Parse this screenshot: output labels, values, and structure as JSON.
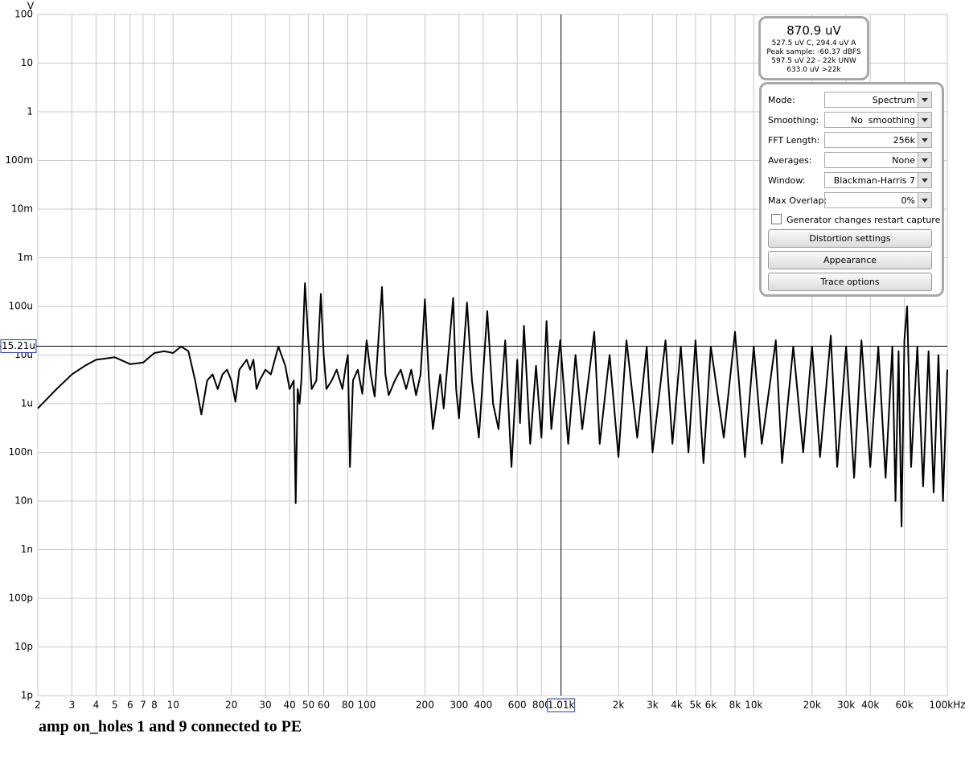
{
  "chart_data": {
    "type": "line",
    "y_unit_label": "V",
    "color": "#000000",
    "grid": true,
    "xscale": "log",
    "yscale": "log",
    "xlim": [
      2,
      100000
    ],
    "ylim": [
      1e-12,
      100
    ],
    "xticks": [
      2,
      3,
      4,
      5,
      6,
      7,
      8,
      10,
      20,
      30,
      40,
      50,
      60,
      80,
      100,
      200,
      300,
      400,
      600,
      800,
      {
        "value": 2000,
        "label": "2k"
      },
      {
        "value": 3000,
        "label": "3k"
      },
      {
        "value": 4000,
        "label": "4k"
      },
      {
        "value": 5000,
        "label": "5k"
      },
      {
        "value": 6000,
        "label": "6k"
      },
      {
        "value": 8000,
        "label": "8k"
      },
      {
        "value": 10000,
        "label": "10k"
      },
      {
        "value": 20000,
        "label": "20k"
      },
      {
        "value": 30000,
        "label": "30k"
      },
      {
        "value": 40000,
        "label": "40k"
      },
      {
        "value": 60000,
        "label": "60k"
      },
      {
        "value": 100000,
        "label": "100kHz"
      }
    ],
    "yticks": [
      100,
      10,
      1,
      {
        "value": 0.1,
        "label": "100m"
      },
      {
        "value": 0.01,
        "label": "10m"
      },
      {
        "value": 0.001,
        "label": "1m"
      },
      {
        "value": 0.0001,
        "label": "100u"
      },
      {
        "value": 1e-05,
        "label": "10u"
      },
      {
        "value": 1e-06,
        "label": "1u"
      },
      {
        "value": 1e-07,
        "label": "100n"
      },
      {
        "value": 1e-08,
        "label": "10n"
      },
      {
        "value": 1e-09,
        "label": "1n"
      },
      {
        "value": 1e-10,
        "label": "100p"
      },
      {
        "value": 1e-11,
        "label": "10p"
      },
      {
        "value": 1e-12,
        "label": "1p"
      }
    ],
    "cursor": {
      "x": {
        "value": 1010,
        "label": "1.01k"
      },
      "y": {
        "value": 1.521e-05,
        "label": "15.21u"
      }
    },
    "x": [
      2,
      2.5,
      3,
      3.5,
      4,
      5,
      6,
      7,
      8,
      9,
      10,
      11,
      12,
      13,
      14,
      15,
      16,
      17,
      18,
      19,
      20,
      21,
      22,
      24,
      25,
      26,
      27,
      28,
      30,
      32,
      35,
      38,
      40,
      42,
      43,
      44,
      45,
      46,
      48,
      50,
      52,
      55,
      58,
      60,
      62,
      66,
      70,
      75,
      78,
      80,
      82,
      85,
      90,
      95,
      100,
      105,
      110,
      120,
      125,
      130,
      140,
      150,
      160,
      170,
      180,
      190,
      200,
      210,
      220,
      240,
      250,
      280,
      290,
      300,
      330,
      350,
      380,
      420,
      450,
      480,
      520,
      560,
      600,
      620,
      650,
      700,
      750,
      800,
      850,
      900,
      1000,
      1100,
      1200,
      1300,
      1500,
      1600,
      1800,
      2000,
      2200,
      2500,
      2800,
      3000,
      3500,
      3800,
      4200,
      4600,
      5000,
      5500,
      6000,
      7000,
      8000,
      9000,
      10000,
      11000,
      13000,
      14000,
      16000,
      18000,
      20000,
      22000,
      25000,
      27000,
      30000,
      33000,
      36000,
      40000,
      44000,
      48000,
      52000,
      54000,
      56000,
      58000,
      60000,
      62000,
      65000,
      70000,
      75000,
      80000,
      85000,
      90000,
      95000,
      100000
    ],
    "values": [
      8e-07,
      2e-06,
      4e-06,
      6e-06,
      8e-06,
      9e-06,
      6.5e-06,
      7e-06,
      1.1e-05,
      1.2e-05,
      1.1e-05,
      1.5e-05,
      1.2e-05,
      3e-06,
      6e-07,
      3e-06,
      4e-06,
      2e-06,
      4e-06,
      5e-06,
      3e-06,
      1.1e-06,
      5e-06,
      8e-06,
      5e-06,
      8e-06,
      2e-06,
      3e-06,
      5e-06,
      4e-06,
      1.5e-05,
      6e-06,
      2e-06,
      3e-06,
      9e-09,
      2e-06,
      1e-06,
      3e-06,
      0.0003,
      2e-05,
      2e-06,
      3e-06,
      0.00018,
      1e-05,
      2e-06,
      3e-06,
      5e-06,
      2e-06,
      6e-06,
      1e-05,
      5e-08,
      3e-06,
      5e-06,
      1.6e-06,
      2e-05,
      4e-06,
      1.4e-06,
      0.00025,
      4e-06,
      1.5e-06,
      3e-06,
      5e-06,
      2e-06,
      5e-06,
      1.5e-06,
      4e-06,
      0.00014,
      3e-06,
      3e-07,
      4e-06,
      8e-07,
      0.00015,
      2e-06,
      5e-07,
      0.00012,
      3e-06,
      2e-07,
      8e-05,
      1e-06,
      3e-07,
      2e-05,
      5e-08,
      8e-06,
      4e-07,
      4e-05,
      1.5e-07,
      6e-06,
      2e-07,
      5e-05,
      3e-07,
      2e-05,
      1.5e-07,
      1e-05,
      3e-07,
      3e-05,
      1.5e-07,
      1e-05,
      8e-08,
      2e-05,
      2e-07,
      1.5e-05,
      1e-07,
      2e-05,
      1.5e-07,
      1.5e-05,
      1e-07,
      2e-05,
      6e-08,
      1.5e-05,
      2e-07,
      3e-05,
      8e-08,
      1.5e-05,
      1.5e-07,
      2e-05,
      6e-08,
      1.5e-05,
      1e-07,
      1.5e-05,
      8e-08,
      2.5e-05,
      5e-08,
      1.5e-05,
      3e-08,
      2e-05,
      5e-08,
      1.5e-05,
      3e-08,
      1.5e-05,
      1e-08,
      1.2e-05,
      3e-09,
      2e-05,
      0.0001,
      5e-08,
      1.5e-05,
      2e-08,
      1.2e-05,
      1.5e-08,
      1e-05,
      1e-08,
      5e-06
    ],
    "caption": "amp on_holes 1 and 9 connected to PE"
  },
  "readout": {
    "main": "870.9 uV",
    "lines": [
      "527.5 uV C, 294.4 uV A",
      "Peak sample: -60.37 dBFS",
      "597.5 uV 22 - 22k UNW",
      "633.0 uV >22k"
    ]
  },
  "controls": [
    {
      "label": "Mode:",
      "value": "Spectrum"
    },
    {
      "label": "Smoothing:",
      "value": "No  smoothing"
    },
    {
      "label": "FFT Length:",
      "value": "256k"
    },
    {
      "label": "Averages:",
      "value": "None"
    },
    {
      "label": "Window:",
      "value": "Blackman-Harris 7"
    },
    {
      "label": "Max Overlap:",
      "value": "0%"
    }
  ],
  "checkbox": "Generator changes restart capture",
  "buttons": [
    "Distortion settings",
    "Appearance",
    "Trace options"
  ]
}
